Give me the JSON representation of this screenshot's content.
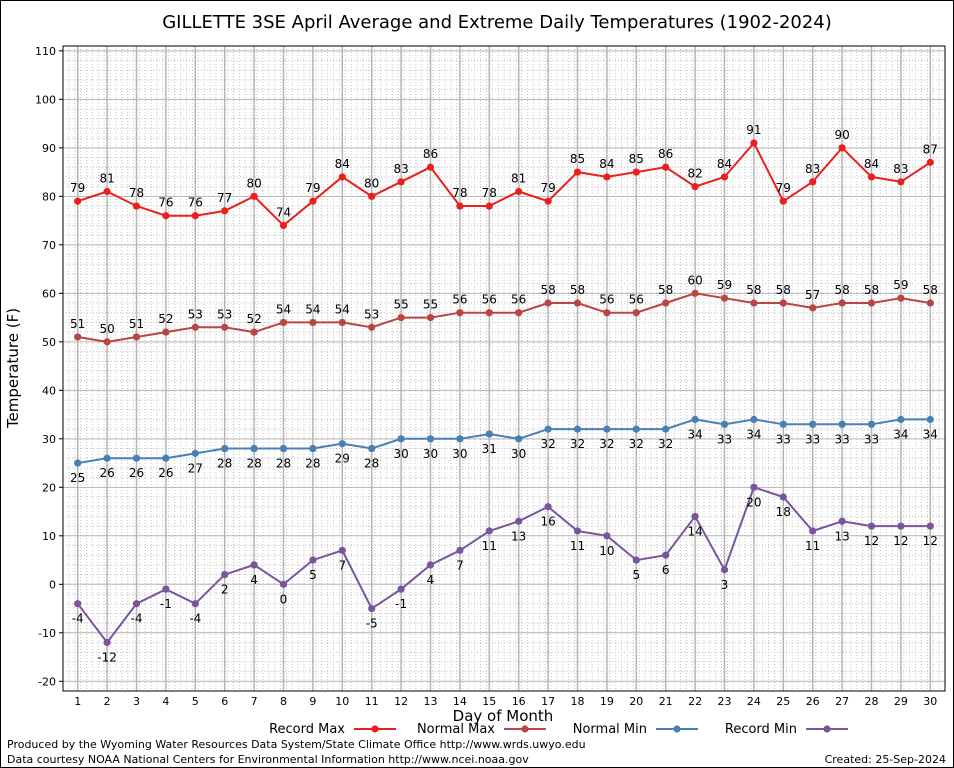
{
  "chart_data": {
    "type": "line",
    "title": "GILLETTE 3SE April Average and Extreme Daily Temperatures (1902-2024)",
    "xlabel": "Day of Month",
    "ylabel": "Temperature (F)",
    "ylim": [
      -22,
      111
    ],
    "yticks": [
      -20,
      -10,
      0,
      10,
      20,
      30,
      40,
      50,
      60,
      70,
      80,
      90,
      100,
      110
    ],
    "x": [
      1,
      2,
      3,
      4,
      5,
      6,
      7,
      8,
      9,
      10,
      11,
      12,
      13,
      14,
      15,
      16,
      17,
      18,
      19,
      20,
      21,
      22,
      23,
      24,
      25,
      26,
      27,
      28,
      29,
      30
    ],
    "grid": true,
    "legend_placement": "bottom",
    "series": [
      {
        "name": "Record Max",
        "color": "#e8211d",
        "label_pos": "above",
        "values": [
          79,
          81,
          78,
          76,
          76,
          77,
          80,
          74,
          79,
          84,
          80,
          83,
          86,
          78,
          78,
          81,
          79,
          85,
          84,
          85,
          86,
          82,
          84,
          91,
          79,
          83,
          90,
          84,
          83,
          87
        ]
      },
      {
        "name": "Normal Max",
        "color": "#b94545",
        "label_pos": "above",
        "values": [
          51,
          50,
          51,
          52,
          53,
          53,
          52,
          54,
          54,
          54,
          53,
          55,
          55,
          56,
          56,
          56,
          58,
          58,
          56,
          56,
          58,
          60,
          59,
          58,
          58,
          57,
          58,
          58,
          59,
          58
        ]
      },
      {
        "name": "Normal Min",
        "color": "#4a7fb3",
        "label_pos": "below",
        "values": [
          25,
          26,
          26,
          26,
          27,
          28,
          28,
          28,
          28,
          29,
          28,
          30,
          30,
          30,
          31,
          30,
          32,
          32,
          32,
          32,
          32,
          34,
          33,
          34,
          33,
          33,
          33,
          33,
          34,
          34
        ]
      },
      {
        "name": "Record Min",
        "color": "#7a559c",
        "label_pos": "below",
        "values": [
          -4,
          -12,
          -4,
          -1,
          -4,
          2,
          4,
          0,
          5,
          7,
          -5,
          -1,
          4,
          7,
          11,
          13,
          16,
          11,
          10,
          5,
          6,
          14,
          3,
          20,
          18,
          11,
          13,
          12,
          12,
          12
        ]
      }
    ]
  },
  "footer": {
    "produced_by": "Produced by the Wyoming Water Resources Data System/State Climate Office http://www.wrds.uwyo.edu",
    "courtesy": "Data courtesy NOAA National Centers for Environmental Information http://www.ncei.noaa.gov",
    "created": "Created:  25-Sep-2024"
  }
}
